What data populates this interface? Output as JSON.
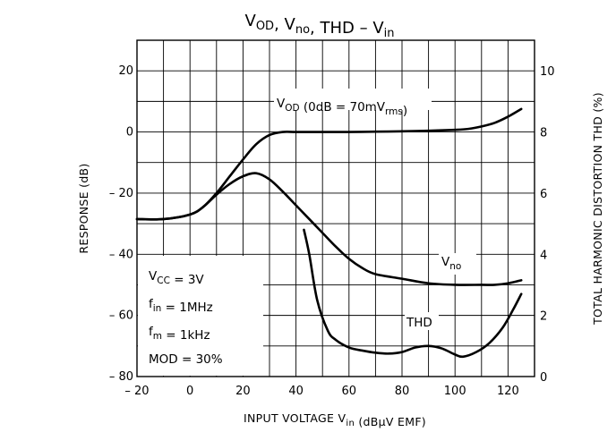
{
  "chart_data": {
    "type": "line",
    "title": {
      "parts": [
        {
          "t": "V"
        },
        {
          "t": "OD",
          "sub": true
        },
        {
          "t": ", V"
        },
        {
          "t": "no",
          "sub": true
        },
        {
          "t": ", THD  –  V"
        },
        {
          "t": "in",
          "sub": true
        }
      ]
    },
    "xlabel": {
      "parts": [
        {
          "t": "INPUT VOLTAGE   V"
        },
        {
          "t": "in",
          "sub": true
        },
        {
          "t": "   (dBμV EMF)"
        }
      ]
    },
    "ylabel_left": "RESPONSE   (dB)",
    "ylabel_right": "TOTAL HARMONIC DISTORTION   THD     (%)",
    "xlim": [
      -20,
      130
    ],
    "ylim_left": [
      -80,
      30
    ],
    "ylim_right": [
      0,
      11
    ],
    "x_ticks": [
      -20,
      0,
      20,
      40,
      60,
      80,
      100,
      120
    ],
    "x_tick_labels": [
      "– 20",
      "0",
      "20",
      "40",
      "60",
      "80",
      "100",
      "120"
    ],
    "y_left_ticks": [
      20,
      0,
      -20,
      -40,
      -60,
      -80
    ],
    "y_left_tick_labels": [
      "20",
      "0",
      "– 20",
      "– 40",
      "– 60",
      "– 80"
    ],
    "y_right_ticks": [
      10,
      8,
      6,
      4,
      2,
      0
    ],
    "y_right_tick_labels": [
      "10",
      "8",
      "6",
      "4",
      "2",
      "0"
    ],
    "grid": true,
    "series": [
      {
        "name": "VOD",
        "axis": "left",
        "x": [
          -20,
          -10,
          0,
          5,
          10,
          15,
          20,
          25,
          30,
          35,
          40,
          50,
          60,
          70,
          80,
          90,
          100,
          105,
          110,
          115,
          120,
          125
        ],
        "y": [
          -28.5,
          -28.5,
          -27,
          -24.5,
          -20,
          -14.5,
          -9,
          -4,
          -1,
          0,
          0,
          0,
          0,
          0.1,
          0.2,
          0.4,
          0.7,
          1,
          1.8,
          3,
          5,
          7.5
        ]
      },
      {
        "name": "Vno",
        "axis": "left",
        "x": [
          -20,
          -10,
          0,
          5,
          10,
          15,
          20,
          25,
          30,
          35,
          40,
          45,
          50,
          55,
          60,
          65,
          70,
          80,
          90,
          100,
          110,
          115,
          120,
          125
        ],
        "y": [
          -28.5,
          -28.5,
          -27,
          -24.5,
          -20.5,
          -17,
          -14.5,
          -13.5,
          -15.5,
          -19.5,
          -24,
          -28.5,
          -33,
          -37.5,
          -41.5,
          -44.5,
          -46.5,
          -48,
          -49.5,
          -50,
          -50,
          -50,
          -49.5,
          -48.5
        ]
      },
      {
        "name": "THD",
        "axis": "right",
        "x": [
          43,
          45,
          48,
          52,
          55,
          60,
          65,
          70,
          75,
          80,
          85,
          90,
          95,
          100,
          103,
          108,
          113,
          118,
          122,
          125
        ],
        "y": [
          4.8,
          4.0,
          2.5,
          1.5,
          1.2,
          0.95,
          0.85,
          0.78,
          0.75,
          0.8,
          0.95,
          1.0,
          0.92,
          0.72,
          0.65,
          0.8,
          1.1,
          1.6,
          2.2,
          2.7
        ]
      }
    ],
    "annotations": {
      "vod_label": {
        "parts": [
          {
            "t": "V"
          },
          {
            "t": "OD",
            "sub": true
          },
          {
            "t": " (0dB = 70mV"
          },
          {
            "t": "rms",
            "sub": true
          },
          {
            "t": ")"
          }
        ]
      },
      "vno_label": {
        "parts": [
          {
            "t": "V"
          },
          {
            "t": "no",
            "sub": true
          }
        ]
      },
      "thd_label": "THD"
    },
    "conditions": [
      {
        "parts": [
          {
            "t": "V"
          },
          {
            "t": "CC",
            "sub": true
          },
          {
            "t": " = 3V"
          }
        ]
      },
      {
        "parts": [
          {
            "t": "f"
          },
          {
            "t": "in",
            "sub": true
          },
          {
            "t": " = 1MHz"
          }
        ]
      },
      {
        "parts": [
          {
            "t": "f"
          },
          {
            "t": "m",
            "sub": true
          },
          {
            "t": " = 1kHz"
          }
        ]
      },
      {
        "parts": [
          {
            "t": "MOD = 30%"
          }
        ]
      }
    ]
  }
}
